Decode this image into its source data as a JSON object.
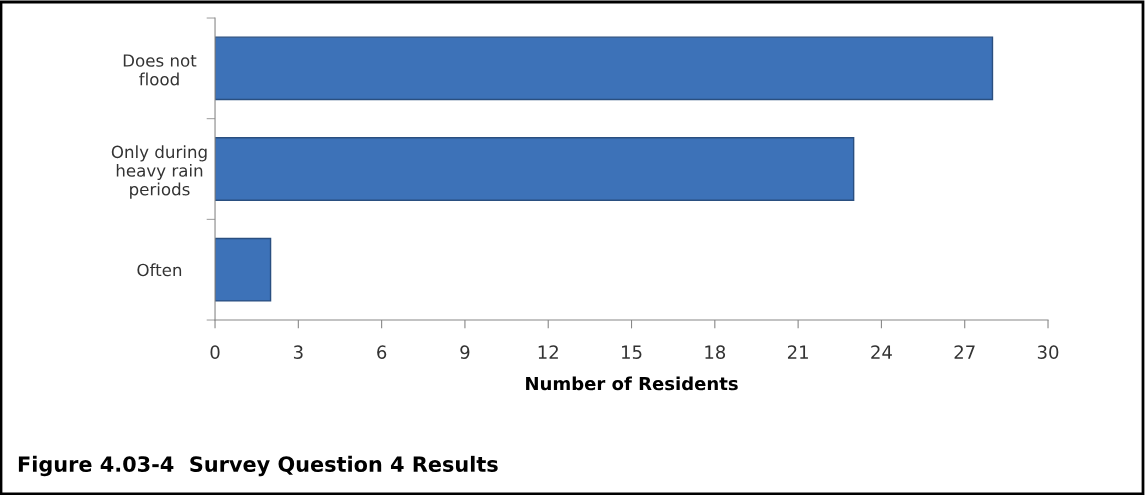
{
  "chart_data": {
    "type": "bar",
    "orientation": "horizontal",
    "categories": [
      "Does not\nflood",
      "Only during\nheavy rain\nperiods",
      "Often"
    ],
    "values": [
      28,
      23,
      2
    ],
    "color": "#3d72b8",
    "xlim": [
      0,
      30
    ],
    "xticks": [
      0,
      3,
      6,
      9,
      12,
      15,
      18,
      21,
      24,
      27,
      30
    ],
    "xlabel": "Number of Residents",
    "grid": false,
    "legend": false,
    "annotations": [
      "Figure 4.03-4  Survey Question 4 Results"
    ]
  }
}
